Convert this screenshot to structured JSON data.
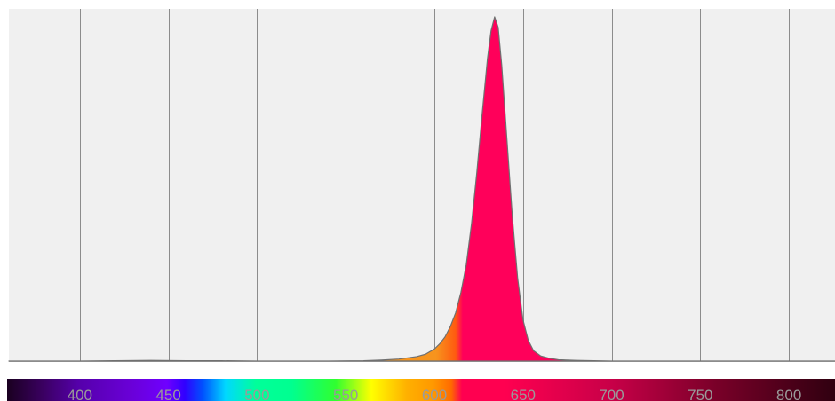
{
  "chart_data": {
    "type": "area",
    "title": "",
    "xlabel": "",
    "ylabel": "",
    "xlim": [
      360,
      826
    ],
    "ylim": [
      0,
      1
    ],
    "grid": true,
    "xticks": [
      400,
      450,
      500,
      550,
      600,
      650,
      700,
      750,
      800
    ],
    "tick_labels": [
      "400",
      "450",
      "500",
      "550",
      "600",
      "650",
      "700",
      "750",
      "800"
    ],
    "series": [
      {
        "x": [
          360,
          380,
          400,
          420,
          440,
          460,
          480,
          500,
          520,
          540,
          560,
          570,
          580,
          590,
          595,
          600,
          603,
          606,
          609,
          612,
          615,
          618,
          621,
          624,
          627,
          630,
          632,
          634,
          636,
          638,
          641,
          644,
          647,
          650,
          653,
          656,
          660,
          665,
          670,
          680,
          690,
          700,
          720,
          760,
          800,
          826
        ],
        "values": [
          0.0,
          0.0,
          0.0,
          0.001,
          0.002,
          0.001,
          0.001,
          0.0,
          0.0,
          0.0,
          0.001,
          0.003,
          0.006,
          0.013,
          0.02,
          0.035,
          0.05,
          0.07,
          0.1,
          0.14,
          0.2,
          0.28,
          0.4,
          0.55,
          0.72,
          0.88,
          0.96,
          1.0,
          0.97,
          0.86,
          0.64,
          0.42,
          0.24,
          0.12,
          0.06,
          0.03,
          0.015,
          0.008,
          0.004,
          0.002,
          0.001,
          0.0,
          0.0,
          0.0,
          0.0,
          0.0
        ]
      }
    ]
  },
  "colors": {
    "plot_background": "#f0f0f0",
    "grid_line": "#8c8c8c",
    "curve_outline": "#707070",
    "fill_orange": "#f7941d",
    "fill_peak": "#ff005a",
    "tick_label": "#9a9a9a"
  },
  "colorbar": {
    "stops": [
      {
        "nm": 360,
        "color": "#1a0020"
      },
      {
        "nm": 380,
        "color": "#3a0060"
      },
      {
        "nm": 400,
        "color": "#5500aa"
      },
      {
        "nm": 430,
        "color": "#6a00d8"
      },
      {
        "nm": 450,
        "color": "#6f00ff"
      },
      {
        "nm": 460,
        "color": "#3000ff"
      },
      {
        "nm": 470,
        "color": "#0050ff"
      },
      {
        "nm": 483,
        "color": "#00d8ff"
      },
      {
        "nm": 500,
        "color": "#00ff9a"
      },
      {
        "nm": 520,
        "color": "#00ff90"
      },
      {
        "nm": 545,
        "color": "#30ff30"
      },
      {
        "nm": 565,
        "color": "#ffff00"
      },
      {
        "nm": 585,
        "color": "#ffb000"
      },
      {
        "nm": 600,
        "color": "#ff9800"
      },
      {
        "nm": 610,
        "color": "#ff6a00"
      },
      {
        "nm": 616,
        "color": "#ff0050"
      },
      {
        "nm": 640,
        "color": "#ff0050"
      },
      {
        "nm": 700,
        "color": "#c80048"
      },
      {
        "nm": 760,
        "color": "#780028"
      },
      {
        "nm": 826,
        "color": "#300010"
      }
    ]
  }
}
